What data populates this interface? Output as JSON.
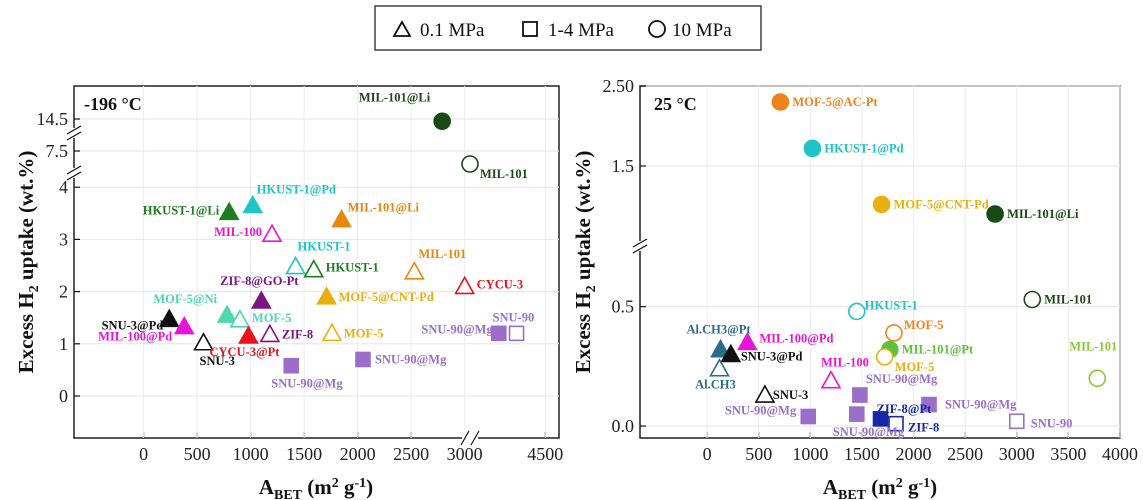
{
  "legend": {
    "items": [
      {
        "label": "0.1 MPa",
        "shape": "triangle"
      },
      {
        "label": "1-4 MPa",
        "shape": "square"
      },
      {
        "label": "10 MPa",
        "shape": "circle"
      }
    ]
  },
  "chart_data": [
    {
      "type": "scatter",
      "panel_label": "-196 °C",
      "xlabel": "A",
      "xlabel_sub": "BET",
      "xlabel_unit": " (m",
      "xlabel_sup": "2",
      "xlabel_tail": " g",
      "xlabel_sup2": "-1",
      "xlabel_close": ")",
      "ylabel": "Excess H",
      "ylabel_sub": "2",
      "ylabel_tail": " uptake (wt.%)",
      "xlim": [
        -650,
        4600
      ],
      "x_ticks": [
        "0",
        "500",
        "1000",
        "1500",
        "2000",
        "2500",
        "3000",
        "4500"
      ],
      "x_break": [
        3050,
        3950
      ],
      "y_ticks": [
        "0",
        "1",
        "2",
        "3",
        "4",
        "7.5",
        "14.5"
      ],
      "y_segments": [
        {
          "range": [
            0,
            4.1
          ],
          "tick_values": [
            0,
            1,
            2,
            3,
            4
          ]
        },
        {
          "range": [
            7.2,
            7.8
          ],
          "tick_values": [
            7.5
          ]
        },
        {
          "range": [
            14.3,
            14.7
          ],
          "tick_values": [
            14.5
          ]
        }
      ],
      "points": [
        {
          "label": "MIL-101@Li",
          "x": 2790,
          "y": 14.45,
          "shape": "circle",
          "filled": true,
          "color": "#1a4a14"
        },
        {
          "label": "MIL-101",
          "x": 3120,
          "y": 7.2,
          "shape": "circle",
          "filled": false,
          "color": "#1a4a14"
        },
        {
          "label": "HKUST-1@Li",
          "x": 800,
          "y": 3.52,
          "shape": "triangle",
          "filled": true,
          "color": "#1e7d1e"
        },
        {
          "label": "HKUST-1@Pd",
          "x": 1020,
          "y": 3.65,
          "shape": "triangle",
          "filled": true,
          "color": "#1fc4c9"
        },
        {
          "label": "MIL-101@Li",
          "x": 1850,
          "y": 3.38,
          "shape": "triangle",
          "filled": true,
          "color": "#e8870c"
        },
        {
          "label": "MIL-100",
          "x": 1200,
          "y": 3.1,
          "shape": "triangle",
          "filled": false,
          "color": "#e815d8"
        },
        {
          "label": "HKUST-1",
          "x": 1420,
          "y": 2.48,
          "shape": "triangle",
          "filled": false,
          "color": "#1fc4c9"
        },
        {
          "label": "HKUST-1",
          "x": 1590,
          "y": 2.42,
          "shape": "triangle",
          "filled": false,
          "color": "#1e7d1e"
        },
        {
          "label": "MIL-101",
          "x": 2530,
          "y": 2.38,
          "shape": "triangle",
          "filled": false,
          "color": "#e8870c"
        },
        {
          "label": "CYCU-3",
          "x": 3000,
          "y": 2.1,
          "shape": "triangle",
          "filled": false,
          "color": "#e8121c"
        },
        {
          "label": "ZIF-8@GO-Pt",
          "x": 1100,
          "y": 1.82,
          "shape": "triangle",
          "filled": true,
          "color": "#7a1480"
        },
        {
          "label": "MOF-5@CNT-Pd",
          "x": 1710,
          "y": 1.9,
          "shape": "triangle",
          "filled": true,
          "color": "#e8b00c"
        },
        {
          "label": "MOF-5@Ni",
          "x": 780,
          "y": 1.55,
          "shape": "triangle",
          "filled": true,
          "color": "#4fd8b0"
        },
        {
          "label": "MOF-5",
          "x": 900,
          "y": 1.46,
          "shape": "triangle",
          "filled": false,
          "color": "#4fd8b0"
        },
        {
          "label": "SNU-3@Pd",
          "x": 240,
          "y": 1.47,
          "shape": "triangle",
          "filled": true,
          "color": "#111111"
        },
        {
          "label": "MIL-100@Pd",
          "x": 380,
          "y": 1.33,
          "shape": "triangle",
          "filled": true,
          "color": "#e815d8"
        },
        {
          "label": "SNU-3",
          "x": 560,
          "y": 1.02,
          "shape": "triangle",
          "filled": false,
          "color": "#111111"
        },
        {
          "label": "ZIF-8",
          "x": 1180,
          "y": 1.18,
          "shape": "triangle",
          "filled": false,
          "color": "#7a1480"
        },
        {
          "label": "CYCU-3@Pt",
          "x": 980,
          "y": 1.15,
          "shape": "triangle",
          "filled": true,
          "color": "#e8121c"
        },
        {
          "label": "MOF-5",
          "x": 1760,
          "y": 1.2,
          "shape": "triangle",
          "filled": false,
          "color": "#e8b00c"
        },
        {
          "label": "SNU-90@Mg",
          "x": 1380,
          "y": 0.58,
          "shape": "square",
          "filled": true,
          "color": "#9a6ec9"
        },
        {
          "label": "SNU-90@Mg",
          "x": 2050,
          "y": 0.7,
          "shape": "square",
          "filled": true,
          "color": "#9a6ec9"
        },
        {
          "label": "SNU-90@Mg",
          "x": 4160,
          "y": 1.2,
          "shape": "square",
          "filled": true,
          "color": "#9a6ec9"
        },
        {
          "label": "SNU-90",
          "x": 4290,
          "y": 1.2,
          "shape": "square",
          "filled": false,
          "color": "#9a6ec9"
        }
      ]
    },
    {
      "type": "scatter",
      "panel_label": "25 °C",
      "xlabel": "A",
      "xlabel_sub": "BET",
      "xlabel_unit": " (m",
      "xlabel_sup": "2",
      "xlabel_tail": " g",
      "xlabel_sup2": "-1",
      "xlabel_close": ")",
      "ylabel": "Excess H",
      "ylabel_sub": "2",
      "ylabel_tail": " uptake (wt.%)",
      "xlim": [
        -650,
        4000
      ],
      "x_ticks": [
        "0",
        "500",
        "1000",
        "1500",
        "2000",
        "2500",
        "3000",
        "3500",
        "4000"
      ],
      "y_ticks": [
        "0.0",
        "0.5",
        "1.5",
        "2.50"
      ],
      "y_segments": [
        {
          "range": [
            -0.05,
            0.62
          ],
          "tick_values": [
            0.0,
            0.5
          ]
        },
        {
          "range": [
            0.9,
            2.5
          ],
          "tick_values": [
            1.5,
            2.5
          ]
        }
      ],
      "points": [
        {
          "label": "MOF-5@AC-Pt",
          "x": 710,
          "y": 2.3,
          "shape": "circle",
          "filled": true,
          "color": "#f0821c"
        },
        {
          "label": "HKUST-1@Pd",
          "x": 1020,
          "y": 1.72,
          "shape": "circle",
          "filled": true,
          "color": "#1fc4c9"
        },
        {
          "label": "MOF-5@CNT-Pd",
          "x": 1690,
          "y": 1.02,
          "shape": "circle",
          "filled": true,
          "color": "#e8b00c"
        },
        {
          "label": "MIL-101@Li",
          "x": 2790,
          "y": 0.64,
          "shape": "circle",
          "filled": true,
          "color": "#1a4a14"
        },
        {
          "label": "MIL-101",
          "x": 3150,
          "y": 0.53,
          "shape": "circle",
          "filled": false,
          "color": "#1a4a14"
        },
        {
          "label": "HKUST-1",
          "x": 1450,
          "y": 0.48,
          "shape": "circle",
          "filled": false,
          "color": "#1fc4c9"
        },
        {
          "label": "MOF-5",
          "x": 1810,
          "y": 0.39,
          "shape": "circle",
          "filled": false,
          "color": "#f0821c"
        },
        {
          "label": "MIL-101@Pt",
          "x": 1770,
          "y": 0.32,
          "shape": "circle",
          "filled": true,
          "color": "#5cc23a"
        },
        {
          "label": "MOF-5",
          "x": 1720,
          "y": 0.29,
          "shape": "circle",
          "filled": false,
          "color": "#e8b00c"
        },
        {
          "label": "MIL-100@Pd",
          "x": 390,
          "y": 0.35,
          "shape": "triangle",
          "filled": true,
          "color": "#e815d8"
        },
        {
          "label": "Al.CH3@Pt",
          "x": 130,
          "y": 0.32,
          "shape": "triangle",
          "filled": true,
          "color": "#2a6b8a"
        },
        {
          "label": "SNU-3@Pd",
          "x": 230,
          "y": 0.3,
          "shape": "triangle",
          "filled": true,
          "color": "#111111"
        },
        {
          "label": "Al.CH3",
          "x": 120,
          "y": 0.24,
          "shape": "triangle",
          "filled": false,
          "color": "#2a6b8a"
        },
        {
          "label": "MIL-100",
          "x": 1200,
          "y": 0.19,
          "shape": "triangle",
          "filled": false,
          "color": "#e815d8"
        },
        {
          "label": "SNU-3",
          "x": 560,
          "y": 0.13,
          "shape": "triangle",
          "filled": false,
          "color": "#111111"
        },
        {
          "label": "SNU-90@Mg",
          "x": 1480,
          "y": 0.13,
          "shape": "square",
          "filled": true,
          "color": "#9a6ec9"
        },
        {
          "label": "SNU-90@Mg",
          "x": 2150,
          "y": 0.09,
          "shape": "square",
          "filled": true,
          "color": "#9a6ec9"
        },
        {
          "label": "SNU-90@Mg",
          "x": 980,
          "y": 0.04,
          "shape": "square",
          "filled": true,
          "color": "#9a6ec9"
        },
        {
          "label": "SNU-90@Mg",
          "x": 1450,
          "y": 0.05,
          "shape": "square",
          "filled": true,
          "color": "#9a6ec9"
        },
        {
          "label": "ZIF-8@Pt",
          "x": 1680,
          "y": 0.03,
          "shape": "square",
          "filled": true,
          "color": "#1428a8"
        },
        {
          "label": "ZIF-8",
          "x": 1830,
          "y": 0.01,
          "shape": "square",
          "filled": false,
          "color": "#1428a8"
        },
        {
          "label": "SNU-90",
          "x": 3000,
          "y": 0.02,
          "shape": "square",
          "filled": false,
          "color": "#9a6ec9"
        },
        {
          "label": "MIL-101",
          "x": 3780,
          "y": 0.2,
          "shape": "circle",
          "filled": false,
          "color": "#8ac83a"
        }
      ]
    }
  ]
}
